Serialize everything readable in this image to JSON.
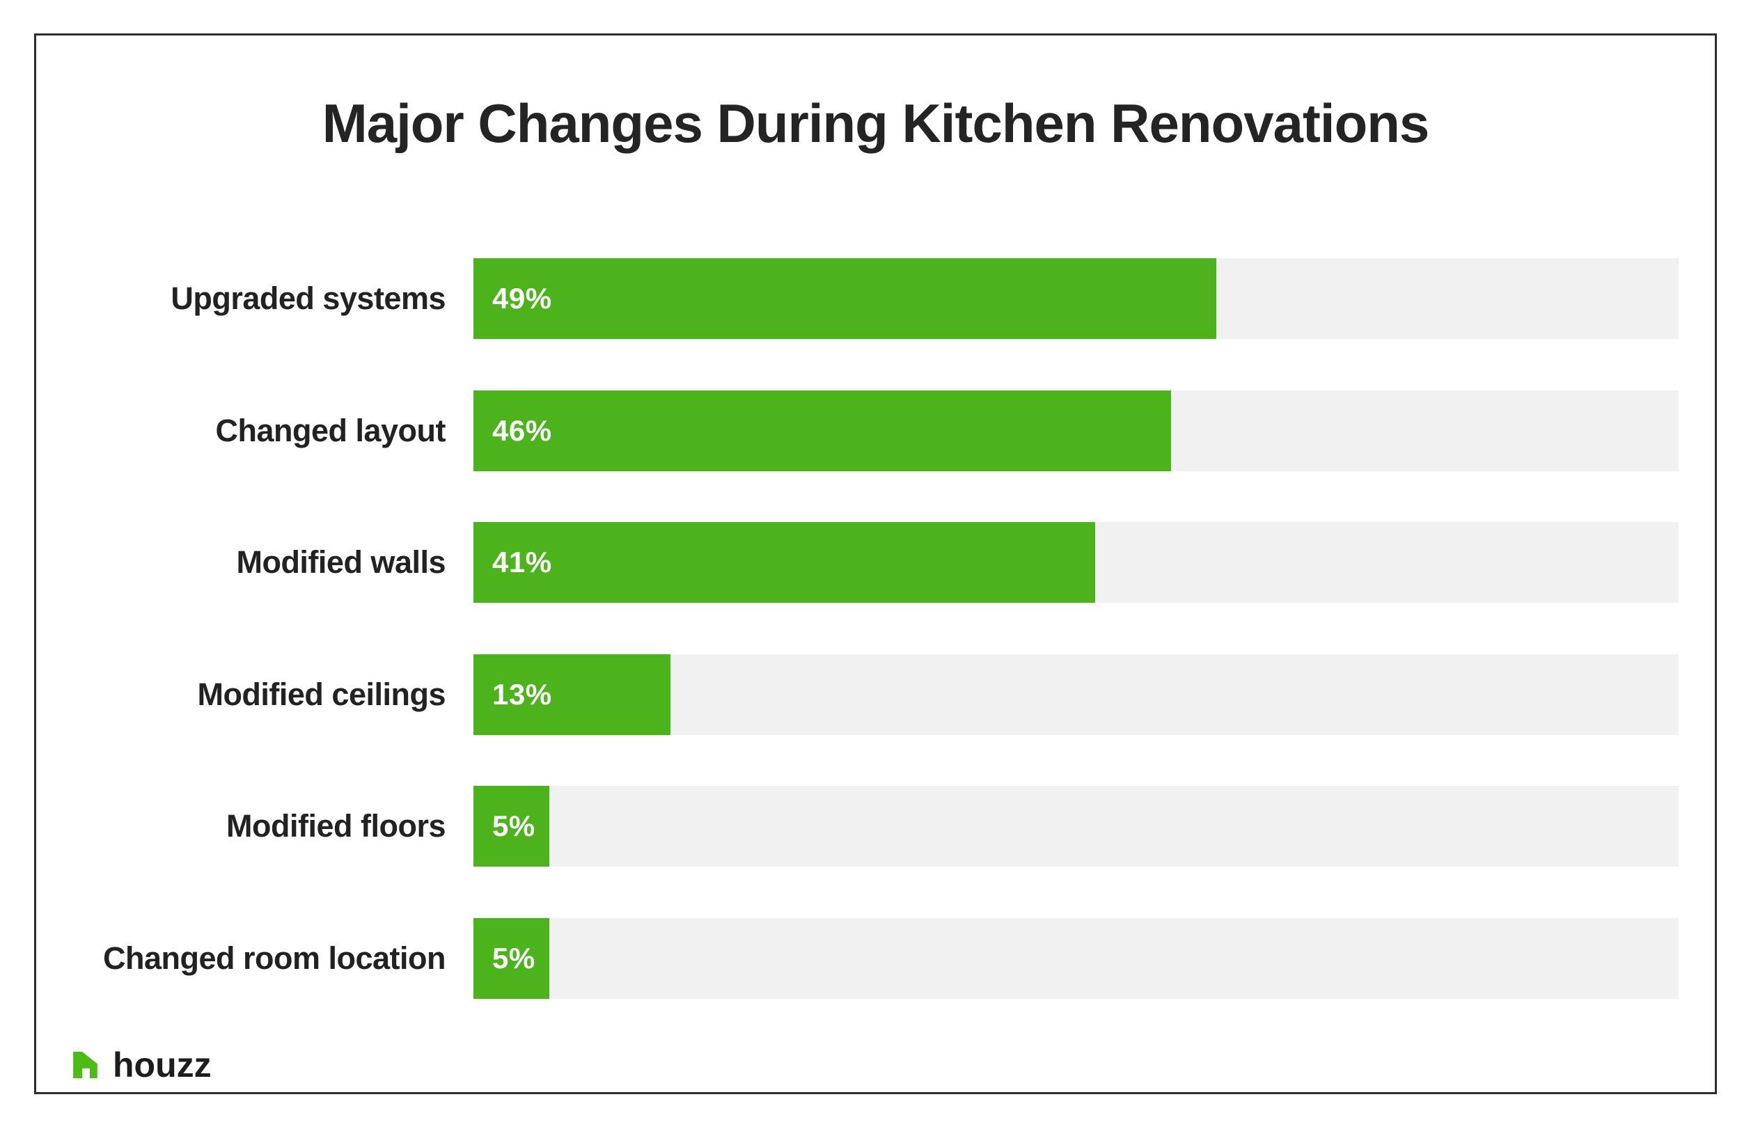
{
  "chart_data": {
    "type": "bar",
    "orientation": "horizontal",
    "title": "Major Changes During Kitchen Renovations",
    "categories": [
      "Upgraded systems",
      "Changed layout",
      "Modified walls",
      "Modified ceilings",
      "Modified floors",
      "Changed room location"
    ],
    "values": [
      49,
      46,
      41,
      13,
      5,
      5
    ],
    "value_labels": [
      "49%",
      "46%",
      "41%",
      "13%",
      "5%",
      "5%"
    ],
    "unit": "%",
    "xlim": [
      0,
      79.5
    ],
    "grid": false,
    "legend": false,
    "value_label_position": "inside-left",
    "category_label_position": "left",
    "bar_color": "#4cb31c",
    "track_color": "#f1f1f1",
    "value_label_color": "#ffffff",
    "category_label_color": "#222222",
    "title_color": "#242424"
  },
  "branding": {
    "logo_text": "houzz",
    "logo_icon": "houzz-house-icon",
    "logo_color": "#4dbc15",
    "wordmark_color": "#1d1d1d"
  },
  "frame": {
    "border_color": "#2e2e2e",
    "background": "#ffffff"
  }
}
